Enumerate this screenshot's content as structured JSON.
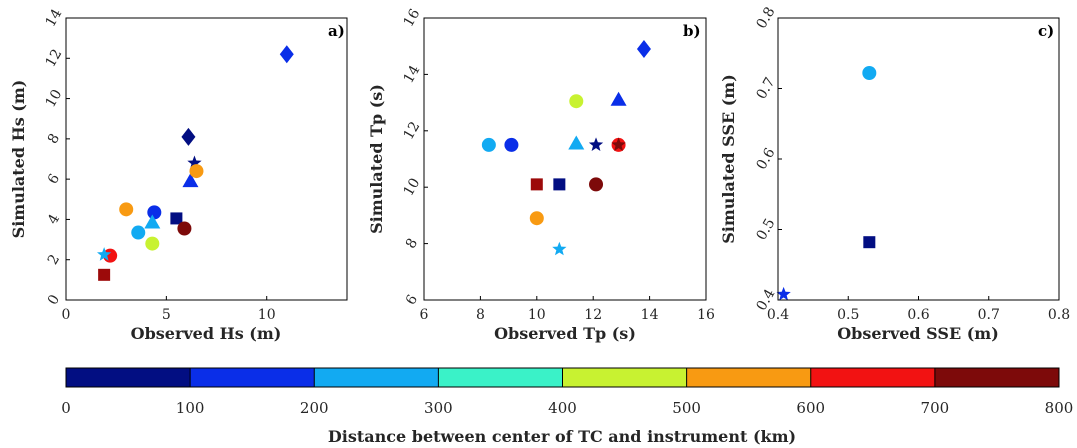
{
  "chart_data": [
    {
      "type": "scatter",
      "panel_label": "a)",
      "xlabel": "Observed Hs (m)",
      "ylabel": "Simulated Hs (m)",
      "xlim": [
        0,
        14
      ],
      "ylim": [
        0,
        14
      ],
      "xticks": [
        0,
        5,
        10
      ],
      "yticks": [
        0,
        2,
        4,
        6,
        8,
        10,
        12,
        14
      ],
      "points": [
        {
          "x": 11.0,
          "y": 12.2,
          "marker": "diamond",
          "color": "#0a2ee8"
        },
        {
          "x": 6.1,
          "y": 8.1,
          "marker": "diamond",
          "color": "#020e82"
        },
        {
          "x": 6.4,
          "y": 6.8,
          "marker": "star",
          "color": "#020e82"
        },
        {
          "x": 6.2,
          "y": 5.9,
          "marker": "triangle",
          "color": "#0a2ee8"
        },
        {
          "x": 6.5,
          "y": 6.4,
          "marker": "circle",
          "color": "#f89a12"
        },
        {
          "x": 3.0,
          "y": 4.5,
          "marker": "circle",
          "color": "#f89a12"
        },
        {
          "x": 4.4,
          "y": 4.35,
          "marker": "circle",
          "color": "#0a2ee8"
        },
        {
          "x": 5.5,
          "y": 4.05,
          "marker": "square",
          "color": "#020e82"
        },
        {
          "x": 4.3,
          "y": 3.85,
          "marker": "triangle",
          "color": "#12aaf2"
        },
        {
          "x": 5.9,
          "y": 3.55,
          "marker": "circle",
          "color": "#7d0a0a"
        },
        {
          "x": 3.6,
          "y": 3.35,
          "marker": "circle",
          "color": "#12aaf2"
        },
        {
          "x": 4.3,
          "y": 2.8,
          "marker": "circle",
          "color": "#c8f231"
        },
        {
          "x": 2.2,
          "y": 2.2,
          "marker": "circle",
          "color": "#f21212"
        },
        {
          "x": 1.9,
          "y": 2.25,
          "marker": "star",
          "color": "#12aaf2"
        },
        {
          "x": 1.9,
          "y": 1.25,
          "marker": "square",
          "color": "#9c0a0a"
        }
      ]
    },
    {
      "type": "scatter",
      "panel_label": "b)",
      "xlabel": "Observed Tp (s)",
      "ylabel": "Simulated Tp (s)",
      "xlim": [
        6,
        16
      ],
      "ylim": [
        6,
        16
      ],
      "xticks": [
        6,
        8,
        10,
        12,
        14,
        16
      ],
      "yticks": [
        6,
        8,
        10,
        12,
        14,
        16
      ],
      "points": [
        {
          "x": 13.8,
          "y": 14.9,
          "marker": "diamond",
          "color": "#0a2ee8"
        },
        {
          "x": 12.9,
          "y": 13.1,
          "marker": "triangle",
          "color": "#0a2ee8"
        },
        {
          "x": 11.4,
          "y": 13.05,
          "marker": "circle",
          "color": "#c8f231"
        },
        {
          "x": 8.3,
          "y": 11.5,
          "marker": "circle",
          "color": "#12aaf2"
        },
        {
          "x": 9.1,
          "y": 11.5,
          "marker": "circle",
          "color": "#0a2ee8"
        },
        {
          "x": 11.4,
          "y": 11.55,
          "marker": "triangle",
          "color": "#12aaf2"
        },
        {
          "x": 12.1,
          "y": 11.5,
          "marker": "star",
          "color": "#020e82"
        },
        {
          "x": 12.9,
          "y": 11.5,
          "marker": "circle",
          "color": "#f21212"
        },
        {
          "x": 12.9,
          "y": 11.5,
          "marker": "star",
          "color": "#7d0a0a"
        },
        {
          "x": 10.0,
          "y": 10.1,
          "marker": "square",
          "color": "#9c0a0a"
        },
        {
          "x": 10.8,
          "y": 10.1,
          "marker": "square",
          "color": "#020e82"
        },
        {
          "x": 12.1,
          "y": 10.1,
          "marker": "circle",
          "color": "#7d0a0a"
        },
        {
          "x": 10.0,
          "y": 8.9,
          "marker": "circle",
          "color": "#f89a12"
        },
        {
          "x": 10.8,
          "y": 7.8,
          "marker": "star",
          "color": "#12aaf2"
        }
      ]
    },
    {
      "type": "scatter",
      "panel_label": "c)",
      "xlabel": "Observed SSE (m)",
      "ylabel": "Simulated SSE (m)",
      "xlim": [
        0.4,
        0.8
      ],
      "ylim": [
        0.4,
        0.8
      ],
      "xticks": [
        0.4,
        0.5,
        0.6,
        0.7,
        0.8
      ],
      "yticks": [
        0.4,
        0.5,
        0.6,
        0.7,
        0.8
      ],
      "points": [
        {
          "x": 0.53,
          "y": 0.722,
          "marker": "circle",
          "color": "#12aaf2"
        },
        {
          "x": 0.53,
          "y": 0.482,
          "marker": "square",
          "color": "#020e82"
        },
        {
          "x": 0.408,
          "y": 0.408,
          "marker": "star",
          "color": "#0a2ee8"
        }
      ]
    }
  ],
  "colorbar": {
    "title": "Distance between center of TC and instrument (km)",
    "ticks": [
      "0",
      "100",
      "200",
      "300",
      "400",
      "500",
      "600",
      "700",
      "800"
    ],
    "colors": [
      "#020e82",
      "#0a2ee8",
      "#12aaf2",
      "#3af2c8",
      "#c8f231",
      "#f89a12",
      "#f21212",
      "#7d0a0a"
    ]
  }
}
